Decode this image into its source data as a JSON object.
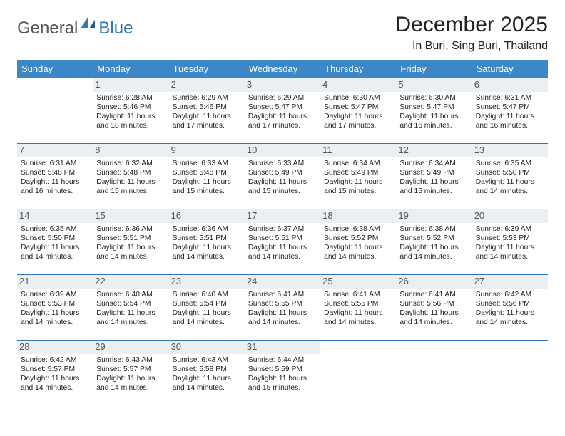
{
  "logo": {
    "part1": "General",
    "part2": "Blue"
  },
  "title": "December 2025",
  "location": "In Buri, Sing Buri, Thailand",
  "colors": {
    "header_bg": "#3b87c8",
    "cell_border": "#2f78b7",
    "daynum_bg": "#eceff1",
    "text": "#222222",
    "logo_blue": "#2f78b7",
    "logo_gray": "#555555",
    "background": "#ffffff"
  },
  "typography": {
    "title_fontsize": 30,
    "location_fontsize": 16,
    "dayhead_fontsize": 13,
    "cell_fontsize": 10.3,
    "daynum_fontsize": 13
  },
  "layout": {
    "columns": 7,
    "weeks": 5,
    "leading_blanks": 1
  },
  "day_headers": [
    "Sunday",
    "Monday",
    "Tuesday",
    "Wednesday",
    "Thursday",
    "Friday",
    "Saturday"
  ],
  "weeks": [
    [
      {
        "n": "",
        "sr": "",
        "ss": "",
        "dl": ""
      },
      {
        "n": "1",
        "sr": "6:28 AM",
        "ss": "5:46 PM",
        "dl": "11 hours and 18 minutes."
      },
      {
        "n": "2",
        "sr": "6:29 AM",
        "ss": "5:46 PM",
        "dl": "11 hours and 17 minutes."
      },
      {
        "n": "3",
        "sr": "6:29 AM",
        "ss": "5:47 PM",
        "dl": "11 hours and 17 minutes."
      },
      {
        "n": "4",
        "sr": "6:30 AM",
        "ss": "5:47 PM",
        "dl": "11 hours and 17 minutes."
      },
      {
        "n": "5",
        "sr": "6:30 AM",
        "ss": "5:47 PM",
        "dl": "11 hours and 16 minutes."
      },
      {
        "n": "6",
        "sr": "6:31 AM",
        "ss": "5:47 PM",
        "dl": "11 hours and 16 minutes."
      }
    ],
    [
      {
        "n": "7",
        "sr": "6:31 AM",
        "ss": "5:48 PM",
        "dl": "11 hours and 16 minutes."
      },
      {
        "n": "8",
        "sr": "6:32 AM",
        "ss": "5:48 PM",
        "dl": "11 hours and 15 minutes."
      },
      {
        "n": "9",
        "sr": "6:33 AM",
        "ss": "5:48 PM",
        "dl": "11 hours and 15 minutes."
      },
      {
        "n": "10",
        "sr": "6:33 AM",
        "ss": "5:49 PM",
        "dl": "11 hours and 15 minutes."
      },
      {
        "n": "11",
        "sr": "6:34 AM",
        "ss": "5:49 PM",
        "dl": "11 hours and 15 minutes."
      },
      {
        "n": "12",
        "sr": "6:34 AM",
        "ss": "5:49 PM",
        "dl": "11 hours and 15 minutes."
      },
      {
        "n": "13",
        "sr": "6:35 AM",
        "ss": "5:50 PM",
        "dl": "11 hours and 14 minutes."
      }
    ],
    [
      {
        "n": "14",
        "sr": "6:35 AM",
        "ss": "5:50 PM",
        "dl": "11 hours and 14 minutes."
      },
      {
        "n": "15",
        "sr": "6:36 AM",
        "ss": "5:51 PM",
        "dl": "11 hours and 14 minutes."
      },
      {
        "n": "16",
        "sr": "6:36 AM",
        "ss": "5:51 PM",
        "dl": "11 hours and 14 minutes."
      },
      {
        "n": "17",
        "sr": "6:37 AM",
        "ss": "5:51 PM",
        "dl": "11 hours and 14 minutes."
      },
      {
        "n": "18",
        "sr": "6:38 AM",
        "ss": "5:52 PM",
        "dl": "11 hours and 14 minutes."
      },
      {
        "n": "19",
        "sr": "6:38 AM",
        "ss": "5:52 PM",
        "dl": "11 hours and 14 minutes."
      },
      {
        "n": "20",
        "sr": "6:39 AM",
        "ss": "5:53 PM",
        "dl": "11 hours and 14 minutes."
      }
    ],
    [
      {
        "n": "21",
        "sr": "6:39 AM",
        "ss": "5:53 PM",
        "dl": "11 hours and 14 minutes."
      },
      {
        "n": "22",
        "sr": "6:40 AM",
        "ss": "5:54 PM",
        "dl": "11 hours and 14 minutes."
      },
      {
        "n": "23",
        "sr": "6:40 AM",
        "ss": "5:54 PM",
        "dl": "11 hours and 14 minutes."
      },
      {
        "n": "24",
        "sr": "6:41 AM",
        "ss": "5:55 PM",
        "dl": "11 hours and 14 minutes."
      },
      {
        "n": "25",
        "sr": "6:41 AM",
        "ss": "5:55 PM",
        "dl": "11 hours and 14 minutes."
      },
      {
        "n": "26",
        "sr": "6:41 AM",
        "ss": "5:56 PM",
        "dl": "11 hours and 14 minutes."
      },
      {
        "n": "27",
        "sr": "6:42 AM",
        "ss": "5:56 PM",
        "dl": "11 hours and 14 minutes."
      }
    ],
    [
      {
        "n": "28",
        "sr": "6:42 AM",
        "ss": "5:57 PM",
        "dl": "11 hours and 14 minutes."
      },
      {
        "n": "29",
        "sr": "6:43 AM",
        "ss": "5:57 PM",
        "dl": "11 hours and 14 minutes."
      },
      {
        "n": "30",
        "sr": "6:43 AM",
        "ss": "5:58 PM",
        "dl": "11 hours and 14 minutes."
      },
      {
        "n": "31",
        "sr": "6:44 AM",
        "ss": "5:59 PM",
        "dl": "11 hours and 15 minutes."
      },
      {
        "n": "",
        "sr": "",
        "ss": "",
        "dl": ""
      },
      {
        "n": "",
        "sr": "",
        "ss": "",
        "dl": ""
      },
      {
        "n": "",
        "sr": "",
        "ss": "",
        "dl": ""
      }
    ]
  ],
  "labels": {
    "sunrise": "Sunrise: ",
    "sunset": "Sunset: ",
    "daylight": "Daylight: "
  }
}
